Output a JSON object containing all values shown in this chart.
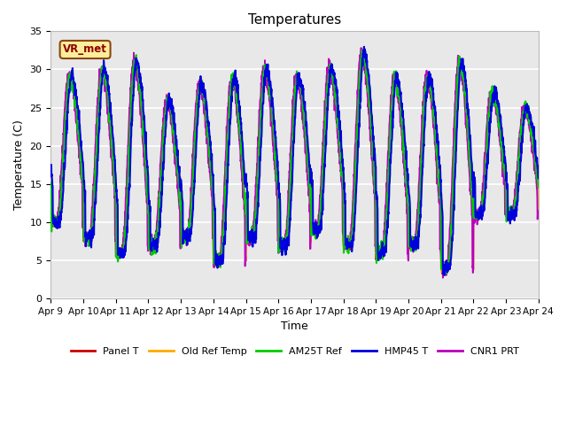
{
  "title": "Temperatures",
  "xlabel": "Time",
  "ylabel": "Temperature (C)",
  "ylim": [
    0,
    35
  ],
  "background_color": "#e8e8e8",
  "grid_color": "#ffffff",
  "annotation_text": "VR_met",
  "annotation_box_facecolor": "#ffee99",
  "annotation_box_edgecolor": "#8B4513",
  "lines": {
    "Panel T": {
      "color": "#cc0000",
      "lw": 1.3
    },
    "Old Ref Temp": {
      "color": "#ffaa00",
      "lw": 1.3
    },
    "AM25T Ref": {
      "color": "#00cc00",
      "lw": 1.5
    },
    "HMP45 T": {
      "color": "#0000dd",
      "lw": 1.5
    },
    "CNR1 PRT": {
      "color": "#bb00bb",
      "lw": 1.3
    }
  },
  "xtick_labels": [
    "Apr 9",
    "Apr 10",
    "Apr 11",
    "Apr 12",
    "Apr 13",
    "Apr 14",
    "Apr 15",
    "Apr 16",
    "Apr 17",
    "Apr 18",
    "Apr 19",
    "Apr 20",
    "Apr 21",
    "Apr 22",
    "Apr 23",
    "Apr 24"
  ],
  "ytick_values": [
    0,
    5,
    10,
    15,
    20,
    25,
    30,
    35
  ],
  "n_days": 15,
  "pts_per_day": 144
}
